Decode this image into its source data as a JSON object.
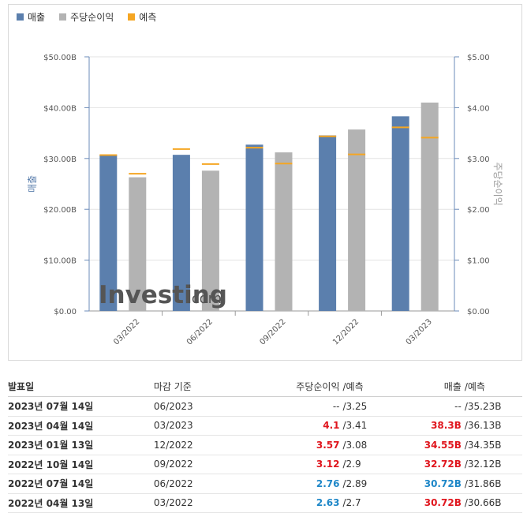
{
  "legend": {
    "revenue": "매출",
    "eps": "주당순이익",
    "forecast": "예측"
  },
  "colors": {
    "revenue": "#5b7fad",
    "eps": "#b3b3b3",
    "forecast": "#f5a623",
    "positive": "#e0161e",
    "negative": "#1e87c8"
  },
  "watermark": {
    "text": "Investing",
    "suffix": ".com"
  },
  "chart_data": {
    "type": "bar",
    "categories": [
      "03/2022",
      "06/2022",
      "09/2022",
      "12/2022",
      "03/2023"
    ],
    "series": [
      {
        "name": "매출",
        "axis": "left",
        "values": [
          30.72,
          30.72,
          32.72,
          34.55,
          38.3
        ],
        "forecast": [
          30.66,
          31.86,
          32.12,
          34.35,
          36.13
        ]
      },
      {
        "name": "주당순이익",
        "axis": "right",
        "values": [
          2.63,
          2.76,
          3.12,
          3.57,
          4.1
        ],
        "forecast": [
          2.7,
          2.89,
          2.9,
          3.08,
          3.41
        ]
      }
    ],
    "ylabel_left": "매출",
    "ylabel_right": "주당순이익",
    "ylim_left": [
      0,
      50
    ],
    "ylim_right": [
      0,
      5
    ],
    "yticks_left": [
      "$0.00",
      "$10.00B",
      "$20.00B",
      "$30.00B",
      "$40.00B",
      "$50.00B"
    ],
    "yticks_right": [
      "$0.00",
      "$1.00",
      "$2.00",
      "$3.00",
      "$4.00",
      "$5.00"
    ],
    "grid": true
  },
  "table": {
    "headers": {
      "date": "발표일",
      "period": "마감 기준",
      "eps": "주당순이익",
      "eps_forecast": "예측",
      "revenue": "매출",
      "revenue_forecast": "예측",
      "slash": "/"
    },
    "rows": [
      {
        "date": "2023년 07월 14일",
        "period": "06/2023",
        "eps": "--",
        "eps_class": "plain",
        "eps_forecast": "3.25",
        "revenue": "--",
        "revenue_class": "plain",
        "revenue_forecast": "35.23B"
      },
      {
        "date": "2023년 04월 14일",
        "period": "03/2023",
        "eps": "4.1",
        "eps_class": "red",
        "eps_forecast": "3.41",
        "revenue": "38.3B",
        "revenue_class": "red",
        "revenue_forecast": "36.13B"
      },
      {
        "date": "2023년 01월 13일",
        "period": "12/2022",
        "eps": "3.57",
        "eps_class": "red",
        "eps_forecast": "3.08",
        "revenue": "34.55B",
        "revenue_class": "red",
        "revenue_forecast": "34.35B"
      },
      {
        "date": "2022년 10월 14일",
        "period": "09/2022",
        "eps": "3.12",
        "eps_class": "red",
        "eps_forecast": "2.9",
        "revenue": "32.72B",
        "revenue_class": "red",
        "revenue_forecast": "32.12B"
      },
      {
        "date": "2022년 07월 14일",
        "period": "06/2022",
        "eps": "2.76",
        "eps_class": "blue",
        "eps_forecast": "2.89",
        "revenue": "30.72B",
        "revenue_class": "blue",
        "revenue_forecast": "31.86B"
      },
      {
        "date": "2022년 04월 13일",
        "period": "03/2022",
        "eps": "2.63",
        "eps_class": "blue",
        "eps_forecast": "2.7",
        "revenue": "30.72B",
        "revenue_class": "red",
        "revenue_forecast": "30.66B"
      }
    ]
  }
}
